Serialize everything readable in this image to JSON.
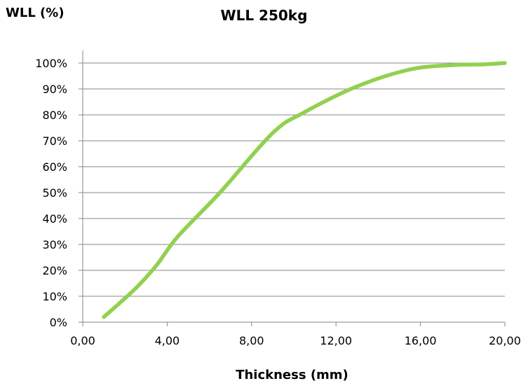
{
  "chart_data": {
    "type": "line",
    "title": "WLL 250kg",
    "xlabel": "Thickness (mm)",
    "ylabel": "WLL  (%)",
    "xlim": [
      0,
      20
    ],
    "ylim": [
      0,
      100
    ],
    "x_ticks": [
      "0,00",
      "4,00",
      "8,00",
      "12,00",
      "16,00",
      "20,00"
    ],
    "y_ticks": [
      "0%",
      "10%",
      "20%",
      "30%",
      "40%",
      "50%",
      "60%",
      "70%",
      "80%",
      "90%",
      "100%"
    ],
    "grid": "horizontal",
    "legend": "none",
    "line_color": "#92d050",
    "series": [
      {
        "x": [
          1.0,
          2.5,
          3.5,
          4.5,
          6.5,
          9.0,
          10.5,
          13.0,
          15.5,
          17.5,
          19.0,
          20.0
        ],
        "y": [
          2,
          13,
          22,
          33,
          50,
          73,
          81,
          91,
          97.5,
          99.2,
          99.5,
          100
        ]
      }
    ]
  }
}
